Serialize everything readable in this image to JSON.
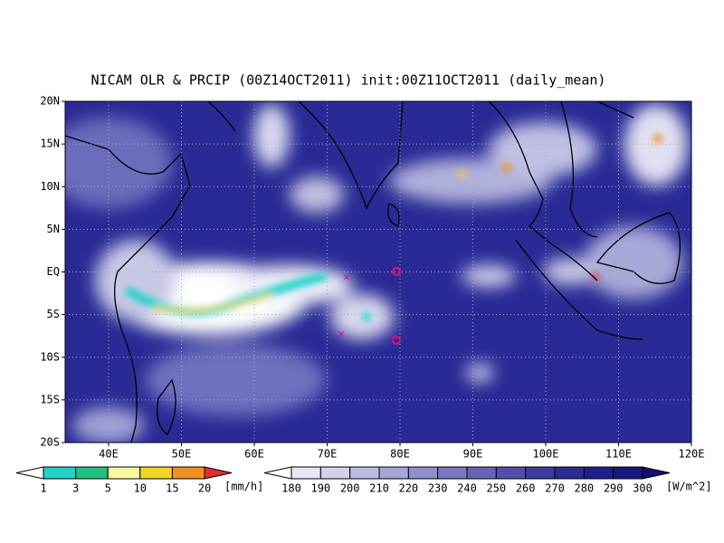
{
  "title": "NICAM OLR & PRCIP (00Z14OCT2011) init:00Z11OCT2011 (daily_mean)",
  "lat_labels": [
    "20N",
    "15N",
    "10N",
    "5N",
    "EQ",
    "5S",
    "10S",
    "15S",
    "20S"
  ],
  "lon_labels": [
    "40E",
    "50E",
    "60E",
    "70E",
    "80E",
    "90E",
    "100E",
    "110E",
    "120E"
  ],
  "precip_legend": {
    "labels": [
      "1",
      "3",
      "5",
      "10",
      "15",
      "20"
    ],
    "unit": "[mm/h]",
    "colors": [
      "#ffffff",
      "#20d2c8",
      "#20c080",
      "#f8f8a0",
      "#f0d820",
      "#f09020",
      "#e03030"
    ]
  },
  "olr_legend": {
    "labels": [
      "180",
      "190",
      "200",
      "210",
      "220",
      "230",
      "240",
      "250",
      "260",
      "270",
      "280",
      "290",
      "300"
    ],
    "unit": "[W/m^2]",
    "colors": [
      "#ffffff",
      "#e6e6f4",
      "#d2d2ec",
      "#bcbce2",
      "#a6a6d8",
      "#9090cc",
      "#7a7ac2",
      "#6464b8",
      "#5050aa",
      "#3c3ca0",
      "#2c2c94",
      "#20208a",
      "#18187e",
      "#101070"
    ]
  }
}
